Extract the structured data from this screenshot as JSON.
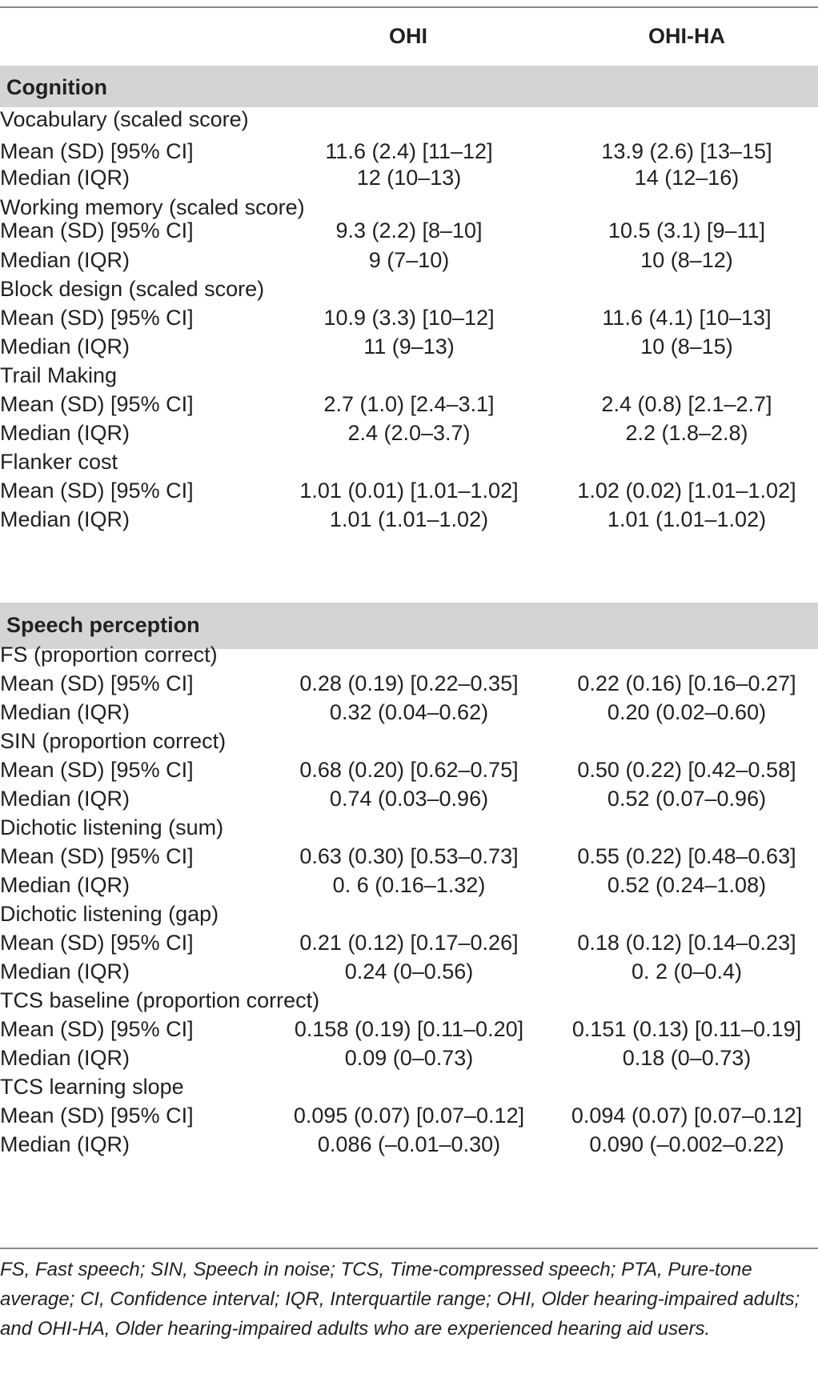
{
  "header": {
    "col1": "OHI",
    "col2": "OHI-HA"
  },
  "sections": {
    "cognition": "Cognition",
    "speech": "Speech perception"
  },
  "rows": [
    {
      "label": "Vocabulary (scaled score)",
      "ohi": "",
      "ohiha": ""
    },
    {
      "label": "Mean (SD) [95% CI]",
      "ohi": "11.6 (2.4) [11–12]",
      "ohiha": "13.9 (2.6) [13–15]"
    },
    {
      "label": "Median (IQR)",
      "ohi": "12 (10–13)",
      "ohiha": "14 (12–16)"
    },
    {
      "label": "Working memory (scaled score)",
      "ohi": "",
      "ohiha": ""
    },
    {
      "label": "Mean (SD) [95% CI]",
      "ohi": "9.3 (2.2) [8–10]",
      "ohiha": "10.5 (3.1) [9–11]"
    },
    {
      "label": "Median (IQR)",
      "ohi": "9 (7–10)",
      "ohiha": "10 (8–12)"
    },
    {
      "label": "Block design (scaled score)",
      "ohi": "",
      "ohiha": ""
    },
    {
      "label": "Mean (SD) [95% CI]",
      "ohi": "10.9 (3.3) [10–12]",
      "ohiha": "11.6 (4.1) [10–13]"
    },
    {
      "label": "Median (IQR)",
      "ohi": "11 (9–13)",
      "ohiha": "10 (8–15)"
    },
    {
      "label": "Trail Making",
      "ohi": "",
      "ohiha": ""
    },
    {
      "label": "Mean (SD) [95% CI]",
      "ohi": "2.7 (1.0) [2.4–3.1]",
      "ohiha": "2.4 (0.8) [2.1–2.7]"
    },
    {
      "label": "Median (IQR)",
      "ohi": "2.4 (2.0–3.7)",
      "ohiha": "2.2 (1.8–2.8)"
    },
    {
      "label": "Flanker cost",
      "ohi": "",
      "ohiha": ""
    },
    {
      "label": "Mean (SD) [95% CI]",
      "ohi": "1.01 (0.01) [1.01–1.02]",
      "ohiha": "1.02 (0.02) [1.01–1.02]"
    },
    {
      "label": "Median (IQR)",
      "ohi": "1.01 (1.01–1.02)",
      "ohiha": "1.01 (1.01–1.02)"
    },
    {
      "label": "FS (proportion correct)",
      "ohi": "",
      "ohiha": ""
    },
    {
      "label": "Mean (SD) [95% CI]",
      "ohi": "0.28 (0.19) [0.22–0.35]",
      "ohiha": "0.22 (0.16) [0.16–0.27]"
    },
    {
      "label": "Median (IQR)",
      "ohi": "0.32 (0.04–0.62)",
      "ohiha": "0.20 (0.02–0.60)"
    },
    {
      "label": "SIN (proportion correct)",
      "ohi": "",
      "ohiha": ""
    },
    {
      "label": "Mean (SD) [95% CI]",
      "ohi": "0.68 (0.20) [0.62–0.75]",
      "ohiha": "0.50 (0.22) [0.42–0.58]"
    },
    {
      "label": "Median (IQR)",
      "ohi": "0.74 (0.03–0.96)",
      "ohiha": "0.52 (0.07–0.96)"
    },
    {
      "label": "Dichotic listening (sum)",
      "ohi": "",
      "ohiha": ""
    },
    {
      "label": "Mean (SD) [95% CI]",
      "ohi": "0.63 (0.30) [0.53–0.73]",
      "ohiha": "0.55 (0.22) [0.48–0.63]"
    },
    {
      "label": "Median (IQR)",
      "ohi": "0. 6 (0.16–1.32)",
      "ohiha": "0.52 (0.24–1.08)"
    },
    {
      "label": "Dichotic listening (gap)",
      "ohi": "",
      "ohiha": ""
    },
    {
      "label": "Mean (SD) [95% CI]",
      "ohi": "0.21 (0.12) [0.17–0.26]",
      "ohiha": "0.18 (0.12) [0.14–0.23]"
    },
    {
      "label": "Median (IQR)",
      "ohi": "0.24 (0–0.56)",
      "ohiha": "0. 2 (0–0.4)"
    },
    {
      "label": "TCS baseline (proportion correct)",
      "ohi": "",
      "ohiha": ""
    },
    {
      "label": "Mean (SD) [95% CI]",
      "ohi": "0.158 (0.19) [0.11–0.20]",
      "ohiha": "0.151 (0.13) [0.11–0.19]"
    },
    {
      "label": "Median (IQR)",
      "ohi": "0.09 (0–0.73)",
      "ohiha": "0.18 (0–0.73)"
    },
    {
      "label": "TCS learning slope",
      "ohi": "",
      "ohiha": ""
    },
    {
      "label": "Mean (SD) [95% CI]",
      "ohi": "0.095 (0.07) [0.07–0.12]",
      "ohiha": "0.094 (0.07) [0.07–0.12]"
    },
    {
      "label": "Median (IQR)",
      "ohi": "0.086 (–0.01–0.30)",
      "ohiha": "0.090 (–0.002–0.22)"
    }
  ],
  "footnote": "FS, Fast speech; SIN, Speech in noise; TCS, Time-compressed speech; PTA, Pure-tone average; CI, Confidence interval; IQR, Interquartile range; OHI, Older hearing-impaired adults; and OHI-HA, Older hearing-impaired adults who are experienced hearing aid users."
}
